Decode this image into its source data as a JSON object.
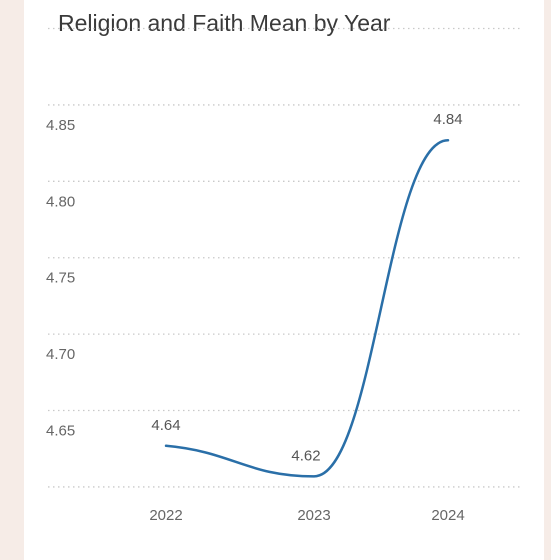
{
  "chart_data": {
    "type": "line",
    "title": "Religion and Faith Mean by Year",
    "xlabel": "",
    "ylabel": "",
    "categories": [
      "2022",
      "2023",
      "2024"
    ],
    "series": [
      {
        "values": [
          4.64,
          4.62,
          4.84
        ],
        "data_labels": [
          "4.64",
          "4.62",
          "4.84"
        ]
      }
    ],
    "yticks": [
      4.65,
      4.7,
      4.75,
      4.8,
      4.85
    ],
    "ytick_labels": [
      "4.65",
      "4.70",
      "4.75",
      "4.80",
      "4.85"
    ],
    "ylim": [
      4.615,
      4.865
    ],
    "grid": true,
    "colors": {
      "line": "#2a6fa8",
      "grid": "#c9c9c9",
      "background": "#f6ece7"
    }
  }
}
